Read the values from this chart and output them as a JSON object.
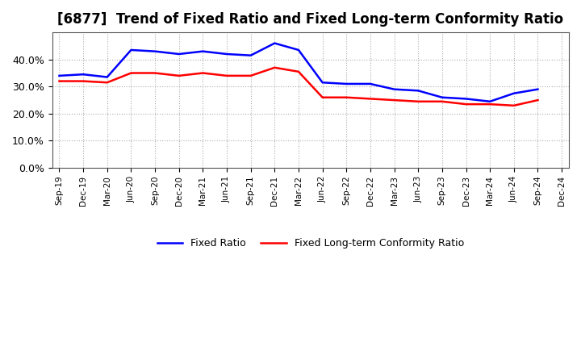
{
  "title": "[6877]  Trend of Fixed Ratio and Fixed Long-term Conformity Ratio",
  "x_labels": [
    "Sep-19",
    "Dec-19",
    "Mar-20",
    "Jun-20",
    "Sep-20",
    "Dec-20",
    "Mar-21",
    "Jun-21",
    "Sep-21",
    "Dec-21",
    "Mar-22",
    "Jun-22",
    "Sep-22",
    "Dec-22",
    "Mar-23",
    "Jun-23",
    "Sep-23",
    "Dec-23",
    "Mar-24",
    "Jun-24",
    "Sep-24",
    "Dec-24"
  ],
  "fixed_ratio": [
    34.0,
    34.5,
    33.5,
    43.5,
    43.0,
    42.0,
    43.0,
    42.0,
    41.5,
    46.0,
    43.5,
    31.5,
    31.0,
    31.0,
    29.0,
    28.5,
    26.0,
    25.5,
    24.5,
    27.5,
    29.0,
    null
  ],
  "fixed_lt_ratio": [
    32.0,
    32.0,
    31.5,
    35.0,
    35.0,
    34.0,
    35.0,
    34.0,
    34.0,
    37.0,
    35.5,
    26.0,
    26.0,
    25.5,
    25.0,
    24.5,
    24.5,
    23.5,
    23.5,
    23.0,
    25.0,
    null
  ],
  "fixed_ratio_color": "#0000FF",
  "fixed_lt_ratio_color": "#FF0000",
  "ylim": [
    0,
    50
  ],
  "yticks": [
    0,
    10,
    20,
    30,
    40
  ],
  "background_color": "#FFFFFF",
  "plot_bg_color": "#FFFFFF",
  "grid_color": "#999999",
  "title_fontsize": 12,
  "legend_labels": [
    "Fixed Ratio",
    "Fixed Long-term Conformity Ratio"
  ]
}
